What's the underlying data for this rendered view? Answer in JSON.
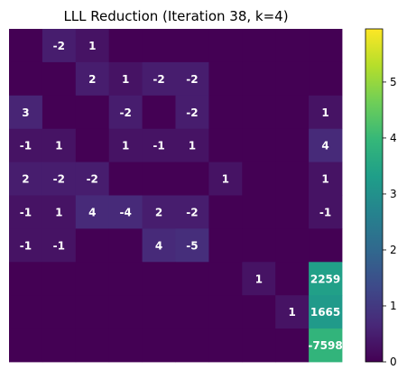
{
  "chart_data": {
    "type": "heatmap",
    "title": "LLL Reduction (Iteration 38, k=4)",
    "xlabel": "",
    "ylabel": "",
    "matrix": [
      [
        0,
        -2,
        1,
        0,
        0,
        0,
        0,
        0,
        0,
        0
      ],
      [
        0,
        0,
        2,
        1,
        -2,
        -2,
        0,
        0,
        0,
        0
      ],
      [
        3,
        0,
        0,
        -2,
        0,
        -2,
        0,
        0,
        0,
        1
      ],
      [
        -1,
        1,
        0,
        1,
        -1,
        1,
        0,
        0,
        0,
        4
      ],
      [
        2,
        -2,
        -2,
        0,
        0,
        0,
        1,
        0,
        0,
        1
      ],
      [
        -1,
        1,
        4,
        -4,
        2,
        -2,
        0,
        0,
        0,
        -1
      ],
      [
        -1,
        -1,
        0,
        0,
        4,
        -5,
        0,
        0,
        0,
        0
      ],
      [
        0,
        0,
        0,
        0,
        0,
        0,
        0,
        1,
        0,
        2259
      ],
      [
        0,
        0,
        0,
        0,
        0,
        0,
        0,
        0,
        1,
        1665
      ],
      [
        0,
        0,
        0,
        0,
        0,
        0,
        0,
        0,
        0,
        -7598
      ]
    ],
    "hidden_zero_labels": true,
    "colorbar": {
      "min": 0,
      "max": 5.95,
      "ticks": [
        0,
        1,
        2,
        3,
        4,
        5
      ],
      "colormap": "viridis"
    },
    "colormap_stops": [
      "#440154",
      "#482878",
      "#3e4989",
      "#31688e",
      "#26828e",
      "#1f9e89",
      "#35b779",
      "#6ece58",
      "#b5de2b",
      "#fde725"
    ]
  }
}
